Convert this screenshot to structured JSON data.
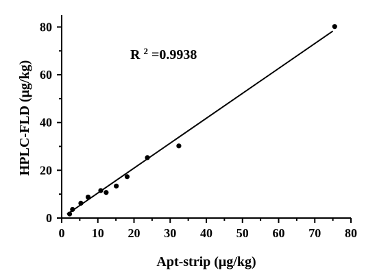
{
  "chart_data": {
    "type": "scatter",
    "xlabel": "Apt-strip (μg/kg)",
    "ylabel": "HPLC-FLD (μg/kg)",
    "xlim": [
      0,
      80
    ],
    "ylim": [
      0,
      85
    ],
    "x_ticks": [
      0,
      10,
      20,
      30,
      40,
      50,
      60,
      70,
      80
    ],
    "y_ticks": [
      0,
      20,
      40,
      60,
      80
    ],
    "grid": false,
    "annotation": {
      "base": "R",
      "sup": "2",
      "rest": "=0.9938"
    },
    "points": [
      {
        "x": 2.2,
        "y": 1.7
      },
      {
        "x": 3.0,
        "y": 3.6
      },
      {
        "x": 5.3,
        "y": 6.2
      },
      {
        "x": 7.3,
        "y": 8.8
      },
      {
        "x": 10.8,
        "y": 11.5
      },
      {
        "x": 12.3,
        "y": 10.7
      },
      {
        "x": 15.1,
        "y": 13.4
      },
      {
        "x": 18.1,
        "y": 17.3
      },
      {
        "x": 23.7,
        "y": 25.3
      },
      {
        "x": 32.4,
        "y": 30.2
      },
      {
        "x": 75.5,
        "y": 80.2
      }
    ],
    "fit_line": {
      "x": [
        1.5,
        75.0
      ],
      "y": [
        1.6,
        78.3
      ]
    }
  }
}
